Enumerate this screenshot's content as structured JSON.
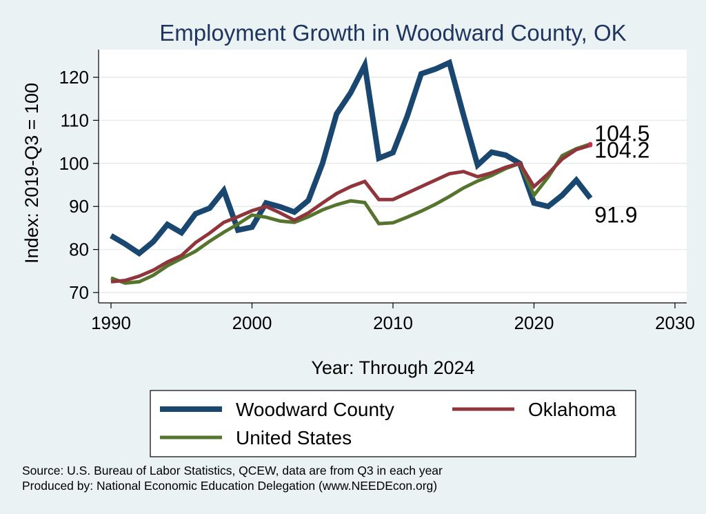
{
  "chart_data": {
    "type": "line",
    "title": "Employment Growth in Woodward County, OK",
    "xlabel": "Year: Through 2024",
    "ylabel": "Index: 2019-Q3 = 100",
    "xlim": [
      1990,
      2030
    ],
    "ylim": [
      68,
      125
    ],
    "xticks": [
      1990,
      2000,
      2010,
      2020,
      2030
    ],
    "yticks": [
      70,
      80,
      90,
      100,
      110,
      120
    ],
    "grid": "horizontal",
    "legend_position": "bottom",
    "x": [
      1990,
      1991,
      1992,
      1993,
      1994,
      1995,
      1996,
      1997,
      1998,
      1999,
      2000,
      2001,
      2002,
      2003,
      2004,
      2005,
      2006,
      2007,
      2008,
      2009,
      2010,
      2011,
      2012,
      2013,
      2014,
      2015,
      2016,
      2017,
      2018,
      2019,
      2020,
      2021,
      2022,
      2023,
      2024
    ],
    "series": [
      {
        "name": "Woodward  County",
        "color": "#1a476f",
        "values": [
          83.2,
          81.3,
          79.1,
          81.8,
          85.8,
          83.9,
          88.3,
          89.6,
          93.7,
          84.5,
          85.2,
          90.8,
          89.9,
          88.7,
          91.4,
          100.0,
          111.5,
          116.4,
          122.8,
          101.2,
          102.5,
          110.9,
          120.8,
          121.9,
          123.4,
          111.2,
          99.6,
          102.6,
          101.9,
          100.0,
          90.8,
          90.0,
          92.6,
          96.1,
          91.9
        ]
      },
      {
        "name": "Oklahoma",
        "color": "#90353b",
        "values": [
          72.5,
          72.8,
          73.8,
          75.2,
          77.1,
          78.6,
          81.6,
          83.8,
          86.3,
          87.6,
          89.0,
          90.0,
          88.5,
          86.8,
          88.5,
          90.8,
          93.0,
          94.6,
          95.8,
          91.6,
          91.6,
          93.1,
          94.6,
          96.1,
          97.6,
          98.1,
          96.9,
          97.8,
          99.1,
          100.0,
          94.6,
          97.6,
          101.0,
          103.2,
          104.2
        ]
      },
      {
        "name": "United States",
        "color": "#55752f",
        "values": [
          73.4,
          72.2,
          72.5,
          74.0,
          76.2,
          77.9,
          79.6,
          81.9,
          84.0,
          85.9,
          88.0,
          87.5,
          86.6,
          86.3,
          87.6,
          89.2,
          90.4,
          91.3,
          90.9,
          86.0,
          86.2,
          87.5,
          88.9,
          90.5,
          92.3,
          94.3,
          95.9,
          97.2,
          98.8,
          100.0,
          92.6,
          96.8,
          101.8,
          103.4,
          104.5
        ]
      }
    ],
    "end_labels": [
      "104.5",
      "104.2",
      "91.9"
    ]
  },
  "source": "Source: U.S. Bureau of Labor Statistics, QCEW, data are from Q3 in each year",
  "produced_by": "Produced by: National Economic Education Delegation (www.NEEDEcon.org)"
}
